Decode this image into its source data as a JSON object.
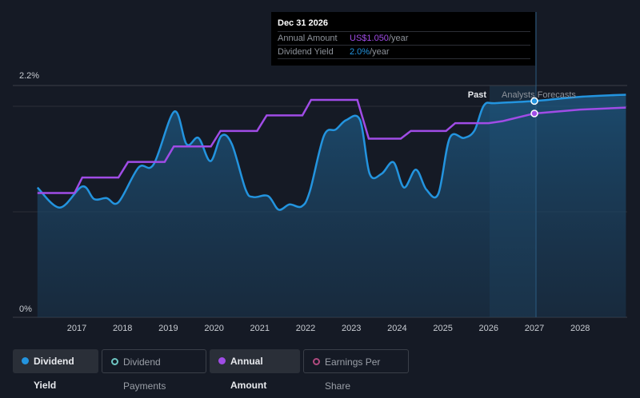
{
  "tooltip": {
    "date": "Dec 31 2026",
    "annual_amount_label": "Annual Amount",
    "annual_amount_value": "US$1.050",
    "annual_amount_unit": "/year",
    "dividend_yield_label": "Dividend Yield",
    "dividend_yield_value": "2.0%",
    "dividend_yield_unit": "/year"
  },
  "legend": [
    {
      "label": "Dividend Yield",
      "active": true,
      "color": "#2394df",
      "filled": true
    },
    {
      "label": "Dividend Payments",
      "active": false,
      "color": "#6ec6c3",
      "filled": false
    },
    {
      "label": "Annual Amount",
      "active": true,
      "color": "#a04ce6",
      "filled": true
    },
    {
      "label": "Earnings Per Share",
      "active": false,
      "color": "#b04a7f",
      "filled": false
    }
  ],
  "chart_data": {
    "type": "line",
    "past_label": "Past",
    "forecast_label": "Analysts Forecasts",
    "forecast_start": 2026.0,
    "y_ticks": [
      "0%",
      "2.2%"
    ],
    "ylim": [
      0,
      2.2
    ],
    "x_ticks": [
      "2017",
      "2018",
      "2019",
      "2020",
      "2021",
      "2022",
      "2023",
      "2024",
      "2025",
      "2026",
      "2027",
      "2028"
    ],
    "xlim": [
      2016.14,
      2029.0
    ],
    "grid": true,
    "series": [
      {
        "name": "Dividend Yield",
        "unit": "%",
        "color": "#2394df",
        "x": [
          2016.14,
          2016.63,
          2017.12,
          2017.38,
          2017.65,
          2017.91,
          2018.35,
          2018.68,
          2019.13,
          2019.4,
          2019.66,
          2019.92,
          2020.16,
          2020.39,
          2020.69,
          2020.86,
          2021.18,
          2021.41,
          2021.65,
          2021.91,
          2022.09,
          2022.4,
          2022.66,
          2022.89,
          2023.19,
          2023.4,
          2023.66,
          2023.92,
          2024.15,
          2024.41,
          2024.64,
          2024.9,
          2025.15,
          2025.46,
          2025.69,
          2025.9,
          2026.16,
          2027.0,
          2028.0,
          2029.0
        ],
        "y": [
          1.23,
          1.04,
          1.24,
          1.12,
          1.13,
          1.09,
          1.42,
          1.45,
          1.95,
          1.64,
          1.7,
          1.48,
          1.72,
          1.64,
          1.21,
          1.14,
          1.15,
          1.02,
          1.07,
          1.05,
          1.19,
          1.72,
          1.78,
          1.87,
          1.87,
          1.36,
          1.36,
          1.47,
          1.23,
          1.4,
          1.21,
          1.17,
          1.7,
          1.7,
          1.77,
          2.01,
          2.03,
          2.05,
          2.09,
          2.11
        ]
      },
      {
        "name": "Annual Amount",
        "unit": "US$",
        "color": "#a04ce6",
        "x": [
          2016.14,
          2016.95,
          2017.12,
          2017.91,
          2018.12,
          2018.92,
          2019.12,
          2019.93,
          2020.14,
          2020.94,
          2021.15,
          2021.93,
          2022.12,
          2023.13,
          2023.38,
          2024.08,
          2024.3,
          2025.07,
          2025.27,
          2026.0,
          2026.3,
          2027.0,
          2028.0,
          2029.0
        ],
        "y": [
          0.64,
          0.64,
          0.72,
          0.72,
          0.8,
          0.8,
          0.88,
          0.88,
          0.96,
          0.96,
          1.04,
          1.04,
          1.12,
          1.12,
          0.92,
          0.92,
          0.96,
          0.96,
          1.0,
          1.0,
          1.01,
          1.05,
          1.07,
          1.08
        ]
      }
    ],
    "highlight": {
      "x": 2027.0,
      "yield": 2.05,
      "amount": 1.05
    }
  }
}
